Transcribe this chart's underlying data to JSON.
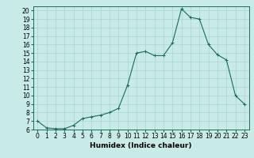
{
  "x": [
    0,
    1,
    2,
    3,
    4,
    5,
    6,
    7,
    8,
    9,
    10,
    11,
    12,
    13,
    14,
    15,
    16,
    17,
    18,
    19,
    20,
    21,
    22,
    23
  ],
  "y": [
    7.0,
    6.2,
    6.1,
    6.1,
    6.5,
    7.3,
    7.5,
    7.7,
    8.0,
    8.5,
    11.2,
    15.0,
    15.2,
    14.7,
    14.7,
    16.2,
    20.2,
    19.2,
    19.0,
    16.0,
    14.8,
    14.2,
    10.0,
    9.0
  ],
  "line_color": "#1a6b5a",
  "marker": "+",
  "marker_size": 3,
  "bg_color": "#c8ebe8",
  "grid_color": "#aad4d0",
  "xlabel": "Humidex (Indice chaleur)",
  "xlim": [
    -0.5,
    23.5
  ],
  "ylim": [
    6,
    20.5
  ],
  "yticks": [
    6,
    7,
    8,
    9,
    10,
    11,
    12,
    13,
    14,
    15,
    16,
    17,
    18,
    19,
    20
  ],
  "xticks": [
    0,
    1,
    2,
    3,
    4,
    5,
    6,
    7,
    8,
    9,
    10,
    11,
    12,
    13,
    14,
    15,
    16,
    17,
    18,
    19,
    20,
    21,
    22,
    23
  ],
  "tick_fontsize": 5.5,
  "label_fontsize": 6.5
}
